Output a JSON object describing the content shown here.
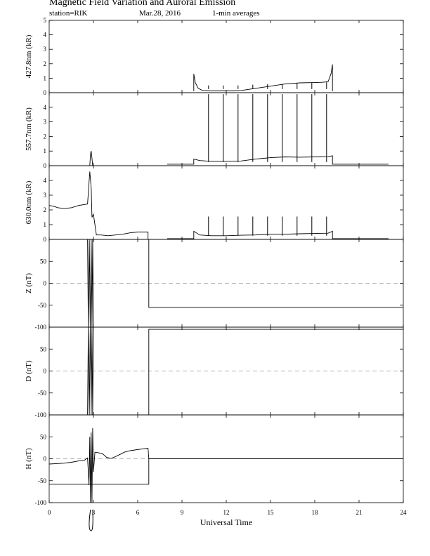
{
  "header": {
    "title": "Magnetic Field Variation and Auroral Emission",
    "station": "station=RIK",
    "date": "Mar.28, 2016",
    "averaging": "1-min averages"
  },
  "chart_data": {
    "type": "line",
    "xlabel": "Universal Time",
    "xlim": [
      0,
      24
    ],
    "xticks": [
      "0",
      "3",
      "6",
      "9",
      "12",
      "15",
      "18",
      "21",
      "24"
    ],
    "panels": [
      {
        "ylabel": "427.8nm (kR)",
        "ylim": [
          0,
          5
        ],
        "yticks": [
          "0",
          "1",
          "2",
          "3",
          "4",
          "5"
        ],
        "series": [
          {
            "points": [
              [
                9.8,
                0.1
              ],
              [
                9.8,
                1.3
              ],
              [
                9.9,
                0.7
              ],
              [
                10.1,
                0.3
              ],
              [
                10.4,
                0.15
              ],
              [
                10.8,
                0.12
              ],
              [
                11.5,
                0.12
              ],
              [
                12.5,
                0.12
              ],
              [
                13.0,
                0.15
              ],
              [
                14.0,
                0.3
              ],
              [
                15.0,
                0.45
              ],
              [
                16.0,
                0.6
              ],
              [
                17.0,
                0.68
              ],
              [
                18.0,
                0.7
              ],
              [
                18.5,
                0.72
              ],
              [
                18.9,
                0.75
              ],
              [
                19.1,
                1.3
              ],
              [
                19.2,
                1.95
              ],
              [
                19.2,
                0.1
              ]
            ],
            "spikes": [
              [
                10.8,
                0.5
              ],
              [
                11.8,
                0.5
              ],
              [
                12.8,
                0.5
              ],
              [
                13.8,
                0.55
              ],
              [
                14.8,
                0.6
              ],
              [
                15.8,
                0.6
              ],
              [
                16.8,
                0.65
              ],
              [
                17.8,
                0.7
              ],
              [
                18.8,
                0.72
              ]
            ]
          }
        ]
      },
      {
        "ylabel": "557.7nm (kR)",
        "ylim": [
          0,
          5
        ],
        "yticks": [
          "0",
          "1",
          "2",
          "3",
          "4"
        ],
        "series": [
          {
            "points": [
              [
                8.0,
                0.1
              ],
              [
                9.8,
                0.1
              ],
              [
                9.8,
                0.45
              ],
              [
                10.2,
                0.35
              ],
              [
                11.0,
                0.3
              ],
              [
                12.0,
                0.3
              ],
              [
                13.0,
                0.32
              ],
              [
                14.0,
                0.45
              ],
              [
                15.0,
                0.55
              ],
              [
                16.0,
                0.6
              ],
              [
                17.0,
                0.58
              ],
              [
                18.0,
                0.6
              ],
              [
                18.9,
                0.62
              ],
              [
                19.2,
                0.68
              ],
              [
                19.2,
                0.1
              ],
              [
                23.0,
                0.1
              ]
            ],
            "spikes": [
              [
                10.8,
                4.9
              ],
              [
                11.8,
                4.9
              ],
              [
                12.8,
                4.9
              ],
              [
                13.8,
                4.9
              ],
              [
                14.8,
                4.9
              ],
              [
                15.8,
                4.9
              ],
              [
                16.8,
                4.9
              ],
              [
                17.8,
                4.9
              ],
              [
                18.8,
                4.9
              ]
            ]
          },
          {
            "points": [
              [
                2.75,
                0.0
              ],
              [
                2.8,
                0.8
              ],
              [
                2.85,
                1.0
              ],
              [
                2.9,
                0.5
              ],
              [
                2.95,
                0.0
              ]
            ]
          }
        ]
      },
      {
        "ylabel": "630.0nm (kR)",
        "ylim": [
          0,
          5
        ],
        "yticks": [
          "0",
          "1",
          "2",
          "3",
          "4"
        ],
        "series": [
          {
            "points": [
              [
                0.0,
                2.3
              ],
              [
                0.3,
                2.25
              ],
              [
                0.6,
                2.15
              ],
              [
                1.0,
                2.1
              ],
              [
                1.5,
                2.15
              ],
              [
                2.0,
                2.3
              ],
              [
                2.6,
                2.4
              ],
              [
                2.75,
                4.6
              ],
              [
                2.85,
                3.5
              ],
              [
                2.9,
                1.5
              ],
              [
                3.0,
                1.7
              ],
              [
                3.1,
                1.0
              ],
              [
                3.2,
                0.3
              ],
              [
                3.5,
                0.3
              ],
              [
                4.0,
                0.25
              ],
              [
                4.5,
                0.3
              ],
              [
                5.0,
                0.35
              ],
              [
                5.5,
                0.45
              ],
              [
                6.0,
                0.5
              ],
              [
                6.7,
                0.5
              ],
              [
                6.7,
                0.0
              ]
            ]
          },
          {
            "points": [
              [
                8.0,
                0.05
              ],
              [
                9.8,
                0.05
              ],
              [
                9.8,
                0.55
              ],
              [
                10.2,
                0.3
              ],
              [
                11.0,
                0.25
              ],
              [
                12.0,
                0.25
              ],
              [
                13.0,
                0.28
              ],
              [
                14.0,
                0.3
              ],
              [
                15.0,
                0.35
              ],
              [
                16.0,
                0.35
              ],
              [
                17.0,
                0.38
              ],
              [
                18.0,
                0.4
              ],
              [
                18.9,
                0.42
              ],
              [
                19.2,
                0.55
              ],
              [
                19.2,
                0.05
              ],
              [
                23.0,
                0.05
              ]
            ],
            "spikes": [
              [
                10.8,
                1.55
              ],
              [
                11.8,
                1.55
              ],
              [
                12.8,
                1.55
              ],
              [
                13.8,
                1.55
              ],
              [
                14.8,
                1.55
              ],
              [
                15.8,
                1.55
              ],
              [
                16.8,
                1.55
              ],
              [
                17.8,
                1.55
              ],
              [
                18.8,
                1.55
              ]
            ]
          }
        ]
      },
      {
        "ylabel": "Z (nT)",
        "ylim": [
          -100,
          100
        ],
        "yticks": [
          "-100",
          "-50",
          "0",
          "50"
        ],
        "zero_line": true,
        "series": [
          {
            "points": [
              [
                6.75,
                100
              ],
              [
                6.75,
                -55
              ],
              [
                24.0,
                -55
              ]
            ]
          },
          {
            "points": [
              [
                2.6,
                100
              ],
              [
                2.65,
                -100
              ],
              [
                2.72,
                100
              ],
              [
                2.78,
                -100
              ],
              [
                2.85,
                100
              ],
              [
                2.9,
                -100
              ],
              [
                2.95,
                100
              ],
              [
                3.0,
                -100
              ]
            ]
          }
        ]
      },
      {
        "ylabel": "D (nT)",
        "ylim": [
          -100,
          100
        ],
        "yticks": [
          "-100",
          "-50",
          "0",
          "50"
        ],
        "zero_line": true,
        "series": [
          {
            "points": [
              [
                6.75,
                -100
              ],
              [
                6.75,
                95
              ],
              [
                24.0,
                95
              ]
            ]
          },
          {
            "points": [
              [
                2.6,
                -100
              ],
              [
                2.65,
                100
              ],
              [
                2.72,
                -100
              ],
              [
                2.78,
                100
              ],
              [
                2.85,
                -100
              ],
              [
                2.9,
                100
              ],
              [
                2.95,
                -100
              ],
              [
                3.0,
                100
              ]
            ]
          }
        ]
      },
      {
        "ylabel": "H (nT)",
        "ylim": [
          -100,
          100
        ],
        "yticks": [
          "-100",
          "-50",
          "0",
          "50"
        ],
        "zero_line": true,
        "series": [
          {
            "points": [
              [
                0.0,
                -12
              ],
              [
                0.5,
                -11
              ],
              [
                1.0,
                -10
              ],
              [
                1.5,
                -8
              ],
              [
                2.0,
                -5
              ],
              [
                2.4,
                -3
              ],
              [
                2.6,
                2
              ],
              [
                2.7,
                -60
              ],
              [
                2.75,
                50
              ],
              [
                2.8,
                -100
              ],
              [
                2.85,
                60
              ],
              [
                2.9,
                -100
              ],
              [
                2.95,
                70
              ],
              [
                3.0,
                -30
              ],
              [
                3.1,
                15
              ],
              [
                3.3,
                14
              ],
              [
                3.6,
                12
              ],
              [
                3.9,
                3
              ],
              [
                4.2,
                1
              ],
              [
                4.5,
                5
              ],
              [
                4.8,
                10
              ],
              [
                5.1,
                15
              ],
              [
                5.4,
                18
              ],
              [
                5.8,
                20
              ],
              [
                6.2,
                22
              ],
              [
                6.7,
                24
              ],
              [
                6.75,
                0
              ],
              [
                24.0,
                0
              ]
            ]
          },
          {
            "points": [
              [
                0.0,
                -58
              ],
              [
                6.75,
                -58
              ],
              [
                6.75,
                0
              ]
            ]
          }
        ]
      }
    ]
  }
}
